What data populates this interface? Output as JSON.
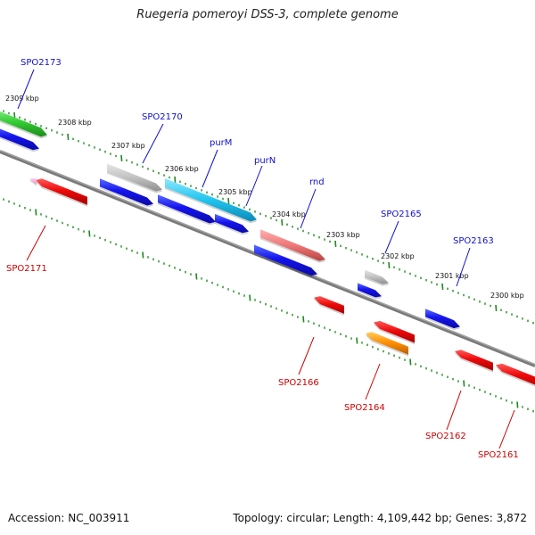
{
  "title": "Ruegeria pomeroyi DSS-3, complete genome",
  "footer": {
    "accession": "Accession: NC_003911",
    "summary": "Topology: circular; Length: 4,109,442 bp; Genes: 3,872"
  },
  "colors": {
    "backbone": "#7a7a7a",
    "tick": "#1f8a1f",
    "label_top": "#1010cc",
    "label_bottom": "#cc0000"
  },
  "kbp_labels": [
    "2309 kbp",
    "2308 kbp",
    "2307 kbp",
    "2306 kbp",
    "2305 kbp",
    "2304 kbp",
    "2303 kbp",
    "2302 kbp",
    "2301 kbp",
    "2300 kbp"
  ],
  "gene_labels_top": [
    "SPO2173",
    "SPO2170",
    "purM",
    "purN",
    "rnd",
    "SPO2165",
    "SPO2163"
  ],
  "gene_labels_bottom": [
    "SPO2171",
    "SPO2166",
    "SPO2164",
    "SPO2162",
    "SPO2161"
  ]
}
